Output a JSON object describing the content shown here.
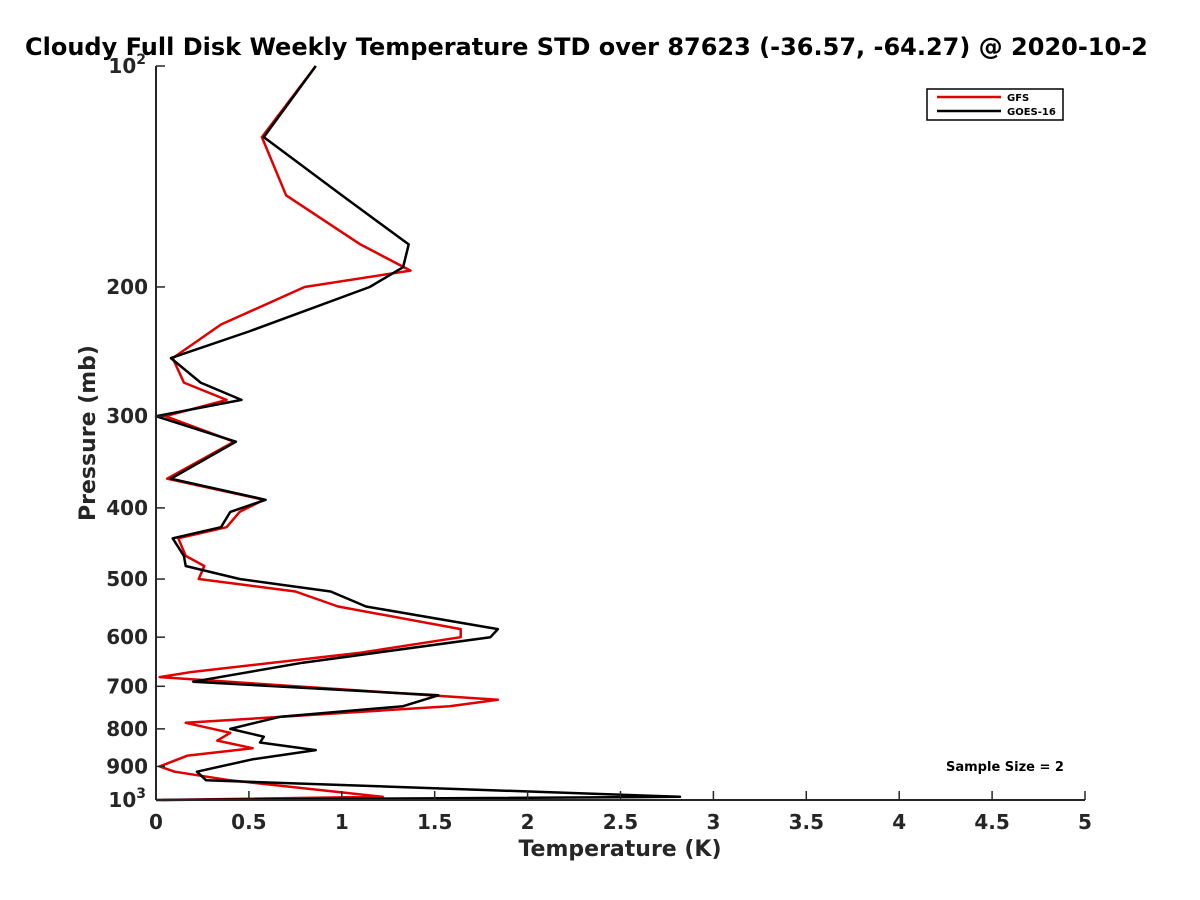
{
  "chart_data": {
    "type": "line",
    "title": "Cloudy Full Disk Weekly Temperature STD over 87623 (-36.57, -64.27) @ 2020-10-2",
    "xlabel": "Temperature (K)",
    "ylabel": "Pressure (mb)",
    "xlim": [
      0,
      5
    ],
    "ylim": [
      100,
      1000
    ],
    "y_scale": "log",
    "y_reversed": true,
    "grid": false,
    "legend_position": "top-right",
    "x_ticks": [
      "0",
      "0.5",
      "1",
      "1.5",
      "2",
      "2.5",
      "3",
      "3.5",
      "4",
      "4.5",
      "5"
    ],
    "x_tick_values": [
      0,
      0.5,
      1,
      1.5,
      2,
      2.5,
      3,
      3.5,
      4,
      4.5,
      5
    ],
    "y_ticks": [
      {
        "value": 100,
        "base": "10",
        "exp": "2",
        "label": ""
      },
      {
        "value": 200,
        "label": "200"
      },
      {
        "value": 300,
        "label": "300"
      },
      {
        "value": 400,
        "label": "400"
      },
      {
        "value": 500,
        "label": "500"
      },
      {
        "value": 600,
        "label": "600"
      },
      {
        "value": 700,
        "label": "700"
      },
      {
        "value": 800,
        "label": "800"
      },
      {
        "value": 900,
        "label": "900"
      },
      {
        "value": 1000,
        "base": "10",
        "exp": "3",
        "label": ""
      }
    ],
    "annotation": "Sample Size = 2",
    "series": [
      {
        "name": "GFS",
        "color": "#e00000",
        "points": [
          [
            0.86,
            100
          ],
          [
            0.57,
            125
          ],
          [
            0.7,
            150
          ],
          [
            1.1,
            175
          ],
          [
            1.37,
            190
          ],
          [
            0.8,
            200
          ],
          [
            0.35,
            225
          ],
          [
            0.09,
            250
          ],
          [
            0.15,
            270
          ],
          [
            0.38,
            285
          ],
          [
            0.05,
            300
          ],
          [
            0.42,
            325
          ],
          [
            0.06,
            365
          ],
          [
            0.58,
            390
          ],
          [
            0.45,
            405
          ],
          [
            0.38,
            425
          ],
          [
            0.12,
            440
          ],
          [
            0.16,
            465
          ],
          [
            0.26,
            480
          ],
          [
            0.23,
            500
          ],
          [
            0.75,
            520
          ],
          [
            0.98,
            545
          ],
          [
            1.64,
            585
          ],
          [
            1.64,
            600
          ],
          [
            1.1,
            630
          ],
          [
            0.18,
            670
          ],
          [
            0.02,
            680
          ],
          [
            1.3,
            715
          ],
          [
            1.84,
            730
          ],
          [
            1.58,
            745
          ],
          [
            0.16,
            785
          ],
          [
            0.4,
            810
          ],
          [
            0.33,
            830
          ],
          [
            0.52,
            850
          ],
          [
            0.17,
            870
          ],
          [
            0.02,
            900
          ],
          [
            0.1,
            915
          ],
          [
            0.4,
            940
          ],
          [
            1.22,
            990
          ],
          [
            0.03,
            1000
          ]
        ]
      },
      {
        "name": "GOES-16",
        "color": "#000000",
        "points": [
          [
            0.86,
            100
          ],
          [
            0.58,
            125
          ],
          [
            1.0,
            150
          ],
          [
            1.36,
            175
          ],
          [
            1.33,
            188
          ],
          [
            1.15,
            200
          ],
          [
            0.5,
            230
          ],
          [
            0.08,
            250
          ],
          [
            0.24,
            270
          ],
          [
            0.46,
            285
          ],
          [
            0.0,
            300
          ],
          [
            0.43,
            325
          ],
          [
            0.08,
            365
          ],
          [
            0.59,
            390
          ],
          [
            0.4,
            405
          ],
          [
            0.35,
            425
          ],
          [
            0.09,
            440
          ],
          [
            0.15,
            465
          ],
          [
            0.16,
            480
          ],
          [
            0.45,
            500
          ],
          [
            0.94,
            520
          ],
          [
            1.13,
            545
          ],
          [
            1.84,
            585
          ],
          [
            1.8,
            600
          ],
          [
            0.79,
            650
          ],
          [
            0.2,
            690
          ],
          [
            1.52,
            720
          ],
          [
            1.33,
            745
          ],
          [
            0.67,
            770
          ],
          [
            0.4,
            800
          ],
          [
            0.58,
            820
          ],
          [
            0.56,
            835
          ],
          [
            0.86,
            855
          ],
          [
            0.52,
            880
          ],
          [
            0.22,
            915
          ],
          [
            0.27,
            940
          ],
          [
            2.82,
            990
          ],
          [
            0.0,
            1000
          ]
        ]
      }
    ]
  }
}
